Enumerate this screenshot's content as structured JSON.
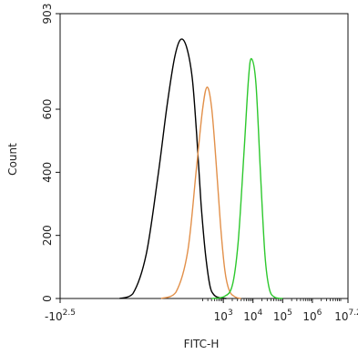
{
  "chart_data": {
    "type": "line",
    "title": "",
    "xlabel": "FITC-H",
    "ylabel": "Count",
    "x_scale": "biexponential",
    "xlim_log10": [
      -2.5,
      7.2
    ],
    "ylim": [
      0,
      903
    ],
    "grid": false,
    "x_ticks": [
      {
        "base": "-10",
        "exp": "2.5",
        "value": -2.5
      },
      {
        "base": "10",
        "exp": "3",
        "value": 3
      },
      {
        "base": "10",
        "exp": "4",
        "value": 4
      },
      {
        "base": "10",
        "exp": "5",
        "value": 5
      },
      {
        "base": "10",
        "exp": "6",
        "value": 6
      },
      {
        "base": "10",
        "exp": "7.2",
        "value": 7.2
      }
    ],
    "y_ticks": [
      {
        "label": "0",
        "value": 0
      },
      {
        "label": "200",
        "value": 200
      },
      {
        "label": "400",
        "value": 400
      },
      {
        "label": "600",
        "value": 600
      },
      {
        "label": "903",
        "value": 903
      }
    ],
    "series": [
      {
        "color": "#000000",
        "x": [
          -0.5,
          -0.05,
          0.4,
          0.8,
          1.1,
          1.35,
          1.55,
          1.75,
          1.95,
          2.1,
          2.25,
          2.4,
          2.55,
          2.7,
          2.9,
          3.1
        ],
        "y": [
          0,
          15,
          140,
          390,
          610,
          760,
          820,
          800,
          700,
          520,
          300,
          140,
          40,
          10,
          2,
          0
        ]
      },
      {
        "color": "#e2904a",
        "x": [
          0.9,
          1.4,
          1.8,
          2.1,
          2.3,
          2.45,
          2.6,
          2.75,
          2.9,
          3.05,
          3.2,
          3.4,
          3.6
        ],
        "y": [
          0,
          20,
          150,
          420,
          600,
          670,
          610,
          440,
          240,
          90,
          25,
          5,
          0
        ]
      },
      {
        "color": "#2dc82d",
        "x": [
          2.6,
          3.0,
          3.3,
          3.5,
          3.7,
          3.85,
          3.95,
          4.1,
          4.25,
          4.4,
          4.55,
          4.75,
          5.0
        ],
        "y": [
          0,
          5,
          40,
          180,
          470,
          700,
          760,
          680,
          400,
          140,
          30,
          3,
          0
        ]
      }
    ]
  }
}
